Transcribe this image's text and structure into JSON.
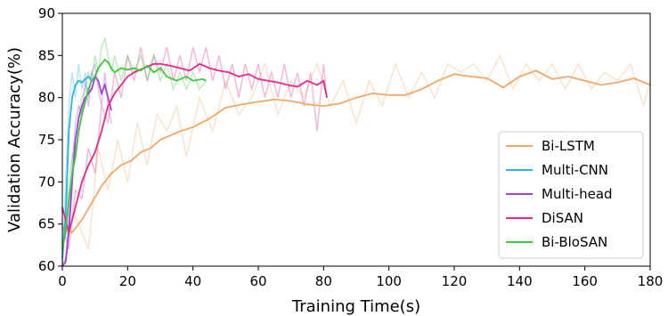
{
  "chart_data": {
    "type": "line",
    "xlabel": "Training Time(s)",
    "ylabel": "Validation Accuracy(%)",
    "xlim": [
      0,
      180
    ],
    "ylim": [
      60,
      90
    ],
    "xticks": [
      0,
      20,
      40,
      60,
      80,
      100,
      120,
      140,
      160,
      180
    ],
    "yticks": [
      60,
      65,
      70,
      75,
      80,
      85,
      90
    ],
    "grid": false,
    "legend_position": "bottom-right",
    "series": [
      {
        "name": "Bi-LSTM",
        "color": "#f0a868",
        "smoothed": [
          [
            0,
            64.5
          ],
          [
            3,
            64
          ],
          [
            6,
            65.5
          ],
          [
            9,
            67.5
          ],
          [
            12,
            69.5
          ],
          [
            15,
            71
          ],
          [
            18,
            72
          ],
          [
            21,
            72.5
          ],
          [
            24,
            73.5
          ],
          [
            27,
            74
          ],
          [
            30,
            75
          ],
          [
            33,
            75.5
          ],
          [
            36,
            76
          ],
          [
            40,
            76.5
          ],
          [
            45,
            77.5
          ],
          [
            50,
            78.8
          ],
          [
            55,
            79.2
          ],
          [
            60,
            79.5
          ],
          [
            65,
            79.8
          ],
          [
            70,
            79.6
          ],
          [
            75,
            79.2
          ],
          [
            80,
            79
          ],
          [
            85,
            79.3
          ],
          [
            90,
            80
          ],
          [
            95,
            80.5
          ],
          [
            100,
            80.3
          ],
          [
            105,
            80.3
          ],
          [
            110,
            81
          ],
          [
            115,
            82
          ],
          [
            120,
            82.8
          ],
          [
            125,
            82.5
          ],
          [
            130,
            82.3
          ],
          [
            135,
            81.2
          ],
          [
            140,
            82.5
          ],
          [
            145,
            83.2
          ],
          [
            150,
            82.2
          ],
          [
            155,
            82.5
          ],
          [
            160,
            82
          ],
          [
            165,
            81.5
          ],
          [
            170,
            81.8
          ],
          [
            175,
            82.3
          ],
          [
            180,
            81.5
          ]
        ],
        "raw": [
          [
            0,
            63
          ],
          [
            4,
            66
          ],
          [
            8,
            62
          ],
          [
            11,
            74
          ],
          [
            14,
            69
          ],
          [
            17,
            75
          ],
          [
            20,
            70
          ],
          [
            23,
            77
          ],
          [
            26,
            72
          ],
          [
            29,
            78
          ],
          [
            32,
            76
          ],
          [
            35,
            79
          ],
          [
            38,
            73
          ],
          [
            42,
            80
          ],
          [
            46,
            76
          ],
          [
            50,
            82
          ],
          [
            54,
            78
          ],
          [
            58,
            80
          ],
          [
            62,
            84
          ],
          [
            66,
            78
          ],
          [
            70,
            82
          ],
          [
            74,
            80
          ],
          [
            78,
            84
          ],
          [
            82,
            79
          ],
          [
            86,
            82
          ],
          [
            90,
            77
          ],
          [
            94,
            82
          ],
          [
            98,
            79
          ],
          [
            102,
            84
          ],
          [
            106,
            80
          ],
          [
            110,
            83
          ],
          [
            114,
            80
          ],
          [
            118,
            84
          ],
          [
            122,
            83
          ],
          [
            126,
            84
          ],
          [
            130,
            82
          ],
          [
            134,
            85
          ],
          [
            138,
            81
          ],
          [
            142,
            84
          ],
          [
            146,
            82
          ],
          [
            150,
            84
          ],
          [
            154,
            81
          ],
          [
            158,
            84
          ],
          [
            162,
            81
          ],
          [
            166,
            83
          ],
          [
            170,
            82
          ],
          [
            174,
            84
          ],
          [
            178,
            79
          ],
          [
            180,
            82
          ]
        ]
      },
      {
        "name": "Multi-CNN",
        "color": "#2ab4e8",
        "smoothed": [
          [
            0,
            61
          ],
          [
            1,
            66
          ],
          [
            2,
            76
          ],
          [
            3,
            80
          ],
          [
            4,
            81.5
          ],
          [
            5,
            82
          ],
          [
            6,
            81.8
          ],
          [
            7,
            82.2
          ],
          [
            8,
            82.5
          ],
          [
            9,
            82
          ],
          [
            10,
            82.5
          ]
        ],
        "raw": [
          [
            0,
            60
          ],
          [
            1,
            70
          ],
          [
            2,
            79
          ],
          [
            3,
            83
          ],
          [
            4,
            80
          ],
          [
            5,
            84
          ],
          [
            6,
            81
          ],
          [
            7,
            83
          ],
          [
            8,
            80
          ],
          [
            9,
            83
          ],
          [
            10,
            82
          ]
        ]
      },
      {
        "name": "Multi-head",
        "color": "#a040d8",
        "smoothed": [
          [
            0,
            60
          ],
          [
            1,
            60.5
          ],
          [
            2,
            64
          ],
          [
            3,
            70
          ],
          [
            4,
            75
          ],
          [
            5,
            77.5
          ],
          [
            6,
            79
          ],
          [
            7,
            80
          ],
          [
            8,
            80.5
          ],
          [
            9,
            81
          ],
          [
            10,
            82.5
          ],
          [
            11,
            82
          ],
          [
            12,
            80.5
          ],
          [
            13,
            81.5
          ],
          [
            14,
            80
          ],
          [
            15,
            78.5
          ]
        ],
        "raw": [
          [
            0,
            59
          ],
          [
            1,
            61
          ],
          [
            2,
            66
          ],
          [
            3,
            72
          ],
          [
            4,
            77
          ],
          [
            5,
            79
          ],
          [
            6,
            78
          ],
          [
            7,
            82
          ],
          [
            8,
            79
          ],
          [
            9,
            83
          ],
          [
            10,
            84
          ],
          [
            11,
            81
          ],
          [
            12,
            79
          ],
          [
            13,
            83
          ],
          [
            14,
            79
          ],
          [
            15,
            77
          ]
        ]
      },
      {
        "name": "DiSAN",
        "color": "#e8288c",
        "smoothed": [
          [
            0,
            67
          ],
          [
            2,
            64
          ],
          [
            4,
            67
          ],
          [
            6,
            70
          ],
          [
            8,
            72
          ],
          [
            10,
            73.5
          ],
          [
            12,
            76
          ],
          [
            14,
            79
          ],
          [
            16,
            80.5
          ],
          [
            18,
            81.5
          ],
          [
            20,
            82.5
          ],
          [
            22,
            83
          ],
          [
            25,
            83.5
          ],
          [
            28,
            84
          ],
          [
            30,
            84
          ],
          [
            33,
            83.8
          ],
          [
            36,
            83.5
          ],
          [
            39,
            83.2
          ],
          [
            42,
            84
          ],
          [
            45,
            83.5
          ],
          [
            48,
            83.2
          ],
          [
            51,
            83
          ],
          [
            54,
            82.5
          ],
          [
            57,
            82.8
          ],
          [
            60,
            82.2
          ],
          [
            63,
            82
          ],
          [
            66,
            81.8
          ],
          [
            69,
            81.5
          ],
          [
            72,
            81.3
          ],
          [
            75,
            82
          ],
          [
            78,
            81.5
          ],
          [
            80,
            82
          ],
          [
            81,
            80
          ]
        ],
        "raw": [
          [
            0,
            65
          ],
          [
            2,
            62
          ],
          [
            4,
            69
          ],
          [
            6,
            68
          ],
          [
            8,
            74
          ],
          [
            10,
            71
          ],
          [
            12,
            79
          ],
          [
            14,
            77
          ],
          [
            16,
            83
          ],
          [
            18,
            80
          ],
          [
            20,
            85
          ],
          [
            22,
            82
          ],
          [
            24,
            86
          ],
          [
            26,
            82
          ],
          [
            28,
            85
          ],
          [
            30,
            83
          ],
          [
            32,
            86
          ],
          [
            34,
            82
          ],
          [
            36,
            85
          ],
          [
            38,
            82
          ],
          [
            40,
            86
          ],
          [
            42,
            83
          ],
          [
            44,
            86
          ],
          [
            46,
            82
          ],
          [
            48,
            85
          ],
          [
            50,
            81
          ],
          [
            52,
            84
          ],
          [
            54,
            80
          ],
          [
            56,
            84
          ],
          [
            58,
            81
          ],
          [
            60,
            84
          ],
          [
            62,
            80
          ],
          [
            64,
            83
          ],
          [
            66,
            80
          ],
          [
            68,
            84
          ],
          [
            70,
            80
          ],
          [
            72,
            83
          ],
          [
            74,
            79
          ],
          [
            76,
            83
          ],
          [
            78,
            76
          ],
          [
            80,
            84
          ],
          [
            81,
            80
          ]
        ]
      },
      {
        "name": "Bi-BloSAN",
        "color": "#3ec83e",
        "smoothed": [
          [
            0,
            62
          ],
          [
            1,
            64
          ],
          [
            2,
            68
          ],
          [
            3,
            71
          ],
          [
            4,
            73
          ],
          [
            5,
            76
          ],
          [
            6,
            78
          ],
          [
            7,
            79.5
          ],
          [
            8,
            81
          ],
          [
            9,
            82
          ],
          [
            10,
            82.5
          ],
          [
            11,
            83.5
          ],
          [
            12,
            84
          ],
          [
            13,
            84.5
          ],
          [
            14,
            84.2
          ],
          [
            15,
            83.5
          ],
          [
            16,
            83
          ],
          [
            18,
            83.5
          ],
          [
            20,
            83.3
          ],
          [
            22,
            83.5
          ],
          [
            24,
            83.2
          ],
          [
            26,
            83.8
          ],
          [
            28,
            83
          ],
          [
            30,
            83.5
          ],
          [
            32,
            82.5
          ],
          [
            35,
            82
          ],
          [
            38,
            82.5
          ],
          [
            40,
            82
          ],
          [
            43,
            82.2
          ],
          [
            44,
            82
          ]
        ],
        "raw": [
          [
            0,
            60
          ],
          [
            1,
            66
          ],
          [
            2,
            70
          ],
          [
            3,
            73
          ],
          [
            4,
            75
          ],
          [
            5,
            78
          ],
          [
            6,
            80
          ],
          [
            7,
            81
          ],
          [
            8,
            83
          ],
          [
            9,
            82
          ],
          [
            10,
            85
          ],
          [
            11,
            83
          ],
          [
            12,
            86
          ],
          [
            13,
            87
          ],
          [
            14,
            85
          ],
          [
            15,
            83
          ],
          [
            16,
            85
          ],
          [
            18,
            82
          ],
          [
            20,
            85
          ],
          [
            22,
            83
          ],
          [
            24,
            85
          ],
          [
            26,
            82
          ],
          [
            28,
            85
          ],
          [
            30,
            82
          ],
          [
            32,
            84
          ],
          [
            34,
            81
          ],
          [
            36,
            83
          ],
          [
            38,
            81
          ],
          [
            40,
            83
          ],
          [
            42,
            81
          ],
          [
            44,
            82
          ]
        ]
      }
    ]
  }
}
